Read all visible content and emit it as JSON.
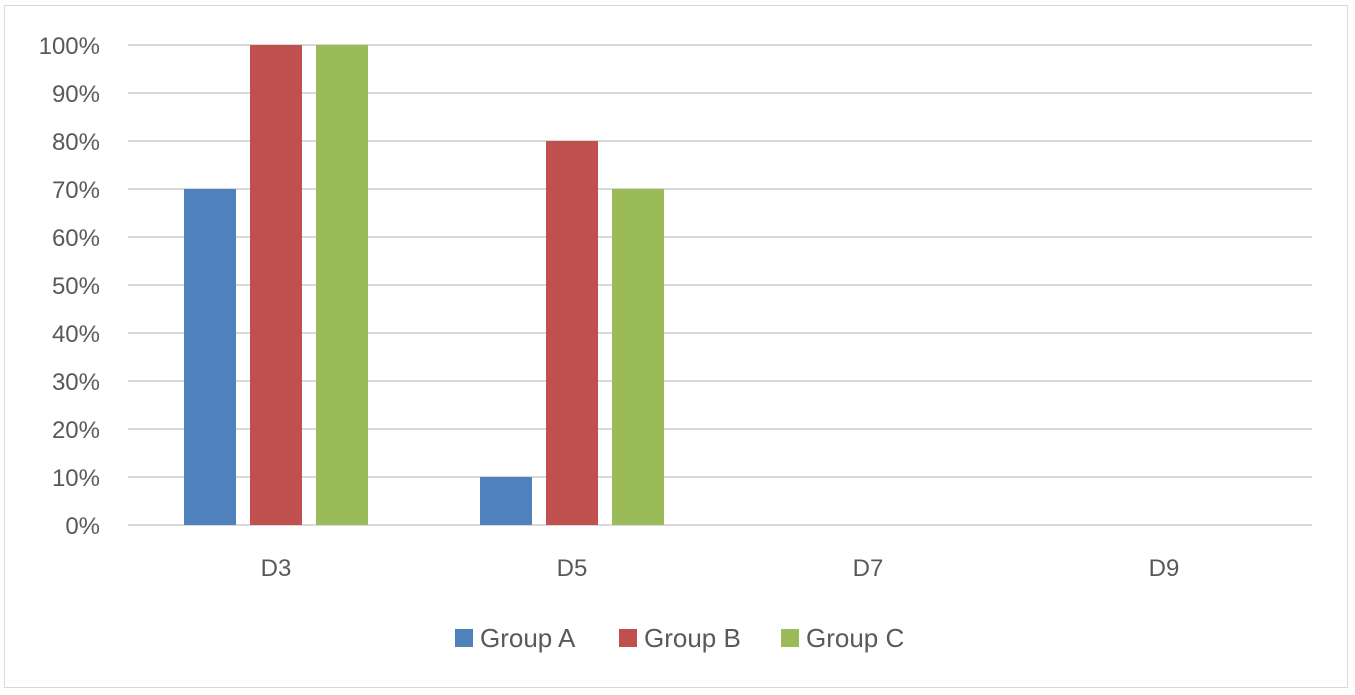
{
  "chart_data": {
    "type": "bar",
    "categories": [
      "D3",
      "D5",
      "D7",
      "D9"
    ],
    "series": [
      {
        "name": "Group A",
        "values": [
          70,
          10,
          null,
          null
        ],
        "color": "#4f81bd"
      },
      {
        "name": "Group B",
        "values": [
          100,
          80,
          null,
          null
        ],
        "color": "#c0504d"
      },
      {
        "name": "Group C",
        "values": [
          100,
          70,
          null,
          null
        ],
        "color": "#9bbb59"
      }
    ],
    "ylim": [
      0,
      100
    ],
    "yticks": [
      "0%",
      "10%",
      "20%",
      "30%",
      "40%",
      "50%",
      "60%",
      "70%",
      "80%",
      "90%",
      "100%"
    ],
    "title": "",
    "xlabel": "",
    "ylabel": "",
    "grid": true,
    "legend_position": "bottom",
    "colors": {
      "gridline": "#d9d9d9",
      "text": "#595959",
      "border": "#d9d9d9"
    }
  }
}
